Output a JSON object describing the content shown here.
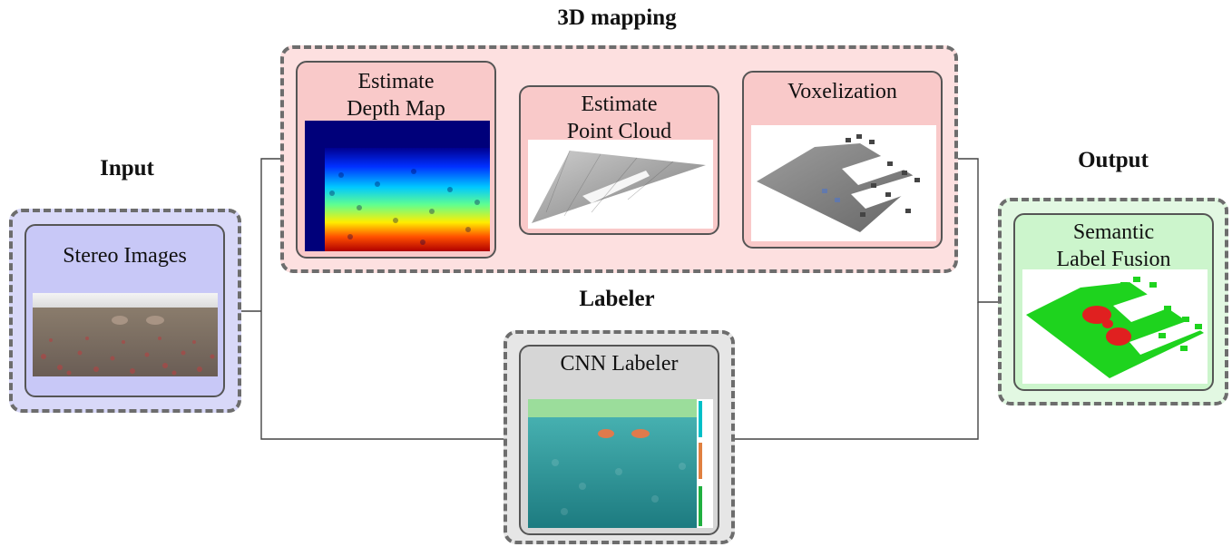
{
  "sections": {
    "input": "Input",
    "mapping": "3D mapping",
    "labeler": "Labeler",
    "output": "Output"
  },
  "nodes": {
    "stereo": "Stereo Images",
    "depth_1": "Estimate",
    "depth_2": "Depth Map",
    "cloud_1": "Estimate",
    "cloud_2": "Point Cloud",
    "voxel": "Voxelization",
    "cnn": "CNN Labeler",
    "fusion_1": "Semantic",
    "fusion_2": "Label Fusion"
  },
  "colors": {
    "input_fill": "#d8d8f8",
    "input_node": "#c8c8f7",
    "mapping_fill": "#fde0e0",
    "mapping_node": "#f9c9c9",
    "labeler_fill": "#e6e6e6",
    "labeler_node": "#d6d6d6",
    "output_fill": "#e2f8e2",
    "output_node": "#ccf5cc"
  }
}
